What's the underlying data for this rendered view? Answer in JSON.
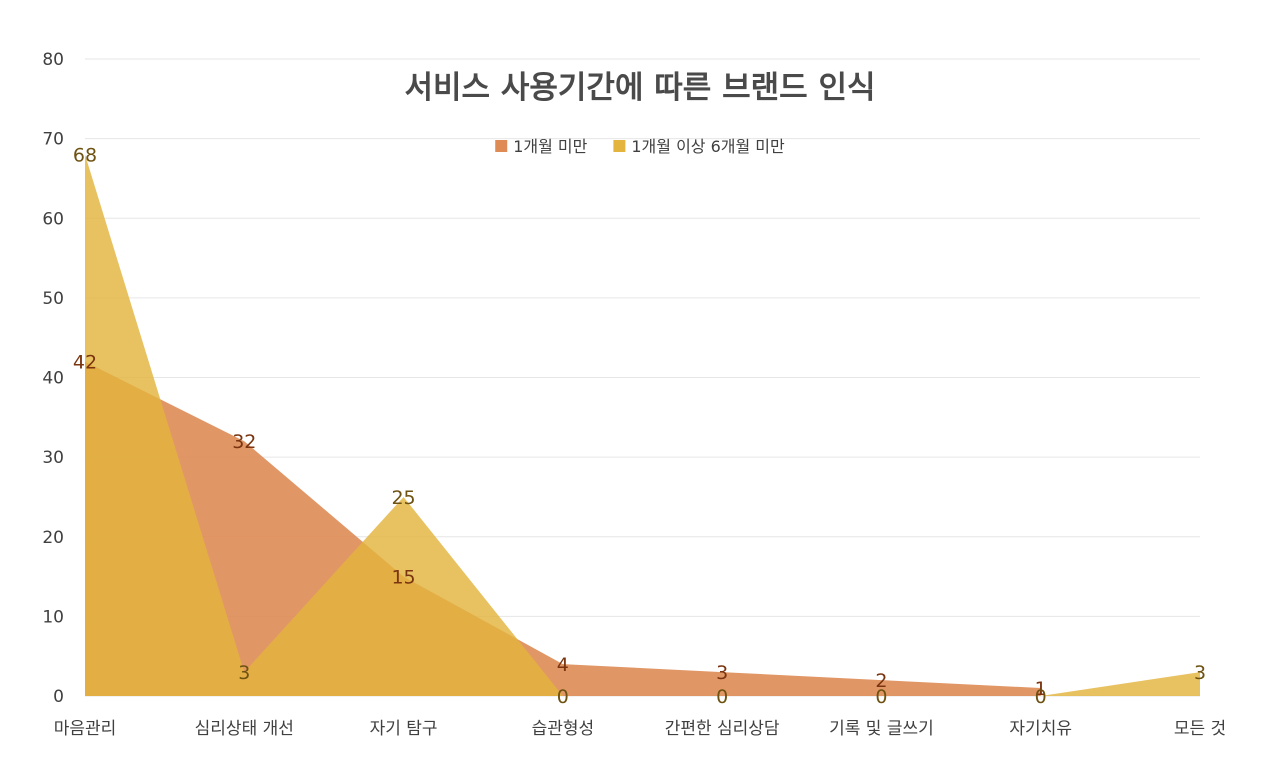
{
  "chart_data": {
    "type": "area",
    "title": "서비스 사용기간에 따른 브랜드 인식",
    "categories": [
      "마음관리",
      "심리상태 개선",
      "자기 탐구",
      "습관형성",
      "간편한 심리상담",
      "기록 및 글쓰기",
      "자기치유",
      "모든 것"
    ],
    "series": [
      {
        "name": "1개월 미만",
        "values": [
          42,
          32,
          15,
          4,
          3,
          2,
          1,
          null
        ],
        "color": "#DE8B55",
        "label_color": "#7A3410"
      },
      {
        "name": "1개월 이상 6개월 미만",
        "values": [
          68,
          3,
          25,
          0,
          0,
          0,
          0,
          3
        ],
        "color": "#E3B53E",
        "label_color": "#6E5212"
      }
    ],
    "y_ticks": [
      0,
      10,
      20,
      30,
      40,
      50,
      60,
      70,
      80
    ],
    "ylim": [
      0,
      80
    ],
    "grid": true,
    "legend_position": "top-center",
    "xlabel": "",
    "ylabel": ""
  }
}
